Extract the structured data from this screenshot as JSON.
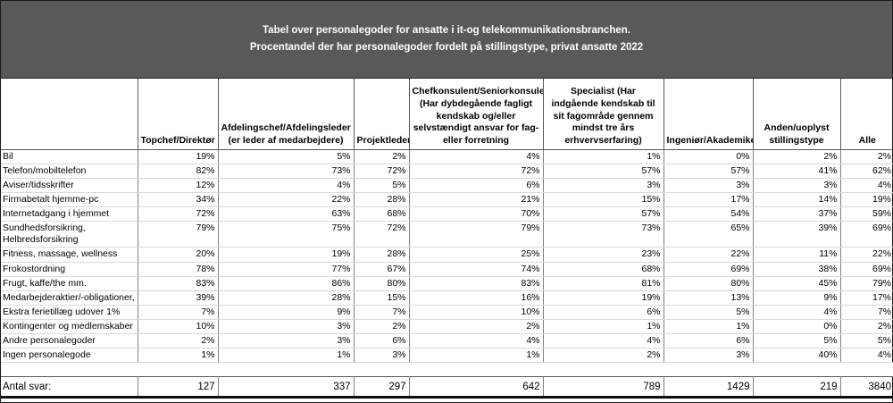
{
  "title": {
    "line1": "Tabel over personalegoder for ansatte i it-og telekommunikationsbranchen.",
    "line2": "Procentandel der har personalegoder fordelt på stillingstype, privat ansatte 2022"
  },
  "colors": {
    "title_band_bg": "#595959",
    "title_text": "#ffffff",
    "grid_dark": "#595959",
    "grid_light": "#d9d9d9"
  },
  "chart_data": {
    "type": "table",
    "title": "Tabel over personalegoder for ansatte i it-og telekommunikationsbranchen.",
    "subtitle": "Procentandel der har personalegoder fordelt på stillingstype, privat ansatte 2022",
    "value_unit": "%",
    "columns": [
      "Topchef/Direktør",
      "Afdelingschef/Afdelingsleder (er leder af medarbejdere)",
      "Projektleder",
      "Chefkonsulent/Seniorkonsulent (Har dybdegående fagligt kendskab og/eller selvstændigt ansvar for fag- eller forretning",
      "Specialist (Har indgående kendskab til sit fagområde gennem mindst tre års erhvervserfaring)",
      "Ingeniør/Akademiker",
      "Anden/uoplyst stillingstype",
      "Alle"
    ],
    "rows": [
      {
        "label": "Bil",
        "values": [
          19,
          5,
          2,
          4,
          1,
          0,
          2,
          2
        ]
      },
      {
        "label": "Telefon/mobiltelefon",
        "values": [
          82,
          73,
          72,
          72,
          57,
          57,
          41,
          62
        ]
      },
      {
        "label": "Aviser/tidsskrifter",
        "values": [
          12,
          4,
          5,
          6,
          3,
          3,
          3,
          4
        ]
      },
      {
        "label": "Firmabetalt hjemme-pc",
        "values": [
          34,
          22,
          28,
          21,
          15,
          17,
          14,
          19
        ]
      },
      {
        "label": "Internetadgang i hjemmet",
        "values": [
          72,
          63,
          68,
          70,
          57,
          54,
          37,
          59
        ]
      },
      {
        "label": "Sundhedsforsikring,\nHelbredsforsikring",
        "values": [
          79,
          75,
          72,
          79,
          73,
          65,
          39,
          69
        ]
      },
      {
        "label": "Fitness, massage, wellness",
        "values": [
          20,
          19,
          28,
          25,
          23,
          22,
          11,
          22
        ]
      },
      {
        "label": "Frokostordning",
        "values": [
          78,
          77,
          67,
          74,
          68,
          69,
          38,
          69
        ]
      },
      {
        "label": "Frugt, kaffe/the mm.",
        "values": [
          83,
          86,
          80,
          83,
          81,
          80,
          45,
          79
        ]
      },
      {
        "label": "Medarbejderaktier/-obligationer,",
        "values": [
          39,
          28,
          15,
          16,
          19,
          13,
          9,
          17
        ]
      },
      {
        "label": "Ekstra ferietillæg udover 1%",
        "values": [
          7,
          9,
          7,
          10,
          6,
          5,
          4,
          7
        ]
      },
      {
        "label": "Kontingenter og medlemskaber",
        "values": [
          10,
          3,
          2,
          2,
          1,
          1,
          0,
          2
        ]
      },
      {
        "label": "Andre personalegoder",
        "values": [
          2,
          3,
          6,
          4,
          4,
          6,
          5,
          5
        ]
      },
      {
        "label": "Ingen personalegode",
        "values": [
          1,
          1,
          3,
          1,
          2,
          3,
          40,
          4
        ]
      }
    ],
    "footer": {
      "label": "Antal svar:",
      "values": [
        127,
        337,
        297,
        642,
        789,
        1429,
        219,
        3840
      ]
    }
  }
}
